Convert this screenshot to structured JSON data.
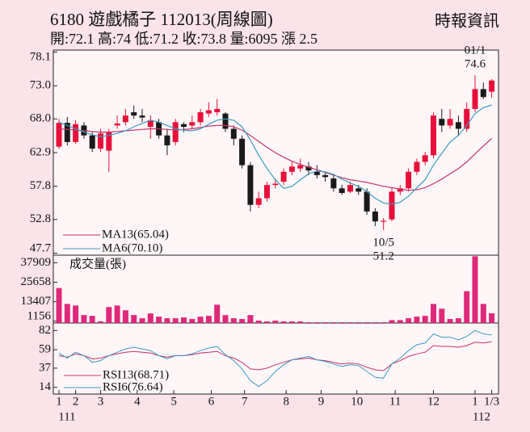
{
  "chart_data": [
    {
      "type": "candlestick",
      "title": "6180  遊戲橘子 112013(周線圖)",
      "subtitle": "開:72.1 高:74 低:71.2 收:73.8 量:6095 漲 2.5",
      "source": "時報資訊",
      "open": [
        63.8,
        67.4,
        64.5,
        67.0,
        65.5,
        63.5,
        63.2,
        67.0,
        67.5,
        69.0,
        68.5,
        66.8,
        67.5,
        65.5,
        64.5,
        67.2,
        67.0,
        67.5,
        68.8,
        69.0,
        68.8,
        66.5,
        65.0,
        61.0,
        55.0,
        56.0,
        58.0,
        58.5,
        60.0,
        60.5,
        60.8,
        60.0,
        59.5,
        59.0,
        57.5,
        57.0,
        57.5,
        57.0,
        54.0,
        52.5,
        52.8,
        57.0,
        57.5,
        60.0,
        61.5,
        62.5,
        68.0,
        67.0,
        67.5,
        66.5,
        69.5,
        72.5,
        72.1
      ],
      "high": [
        68.0,
        68.3,
        67.8,
        67.5,
        66.0,
        66.5,
        66.5,
        68.5,
        69.5,
        70.0,
        69.5,
        68.5,
        68.0,
        66.5,
        68.0,
        67.5,
        68.5,
        69.5,
        70.5,
        71.0,
        69.0,
        67.0,
        65.5,
        61.5,
        57.0,
        58.5,
        59.0,
        60.5,
        61.5,
        62.0,
        61.5,
        61.0,
        60.0,
        59.5,
        58.0,
        58.5,
        58.0,
        57.5,
        54.5,
        53.0,
        57.5,
        58.0,
        60.5,
        62.0,
        63.0,
        69.0,
        69.5,
        69.5,
        68.5,
        70.5,
        74.6,
        73.5,
        74
      ],
      "low": [
        63.5,
        64.0,
        64.2,
        65.0,
        63.0,
        63.0,
        60.0,
        66.5,
        67.0,
        68.0,
        67.5,
        65.0,
        65.0,
        62.5,
        64.0,
        66.0,
        66.5,
        67.0,
        68.3,
        68.5,
        66.0,
        64.0,
        60.5,
        54.0,
        54.5,
        55.5,
        57.5,
        58.0,
        59.5,
        60.0,
        59.5,
        59.0,
        58.5,
        57.0,
        56.5,
        56.8,
        56.5,
        53.5,
        51.8,
        51.2,
        52.5,
        56.5,
        57.0,
        59.5,
        61.0,
        62.0,
        66.0,
        66.5,
        65.5,
        66.0,
        69.0,
        71.0,
        71.2
      ],
      "close": [
        67.4,
        64.5,
        67.2,
        65.5,
        63.5,
        65.8,
        66.0,
        67.3,
        68.5,
        68.5,
        68.2,
        67.8,
        65.5,
        64.0,
        67.5,
        66.8,
        67.5,
        69.0,
        69.3,
        69.5,
        66.5,
        65.0,
        61.0,
        55.0,
        56.0,
        58.0,
        58.2,
        60.0,
        60.8,
        61.0,
        60.2,
        59.5,
        59.2,
        57.5,
        56.8,
        58.0,
        57.0,
        54.0,
        52.5,
        52.6,
        57.0,
        57.5,
        60.0,
        61.5,
        62.5,
        68.5,
        67.0,
        68.0,
        66.5,
        69.5,
        72.5,
        71.3,
        73.8
      ],
      "up_color": "#e8103a",
      "down_color": "#1a1a1a",
      "series": [
        {
          "name": "MA13(65.04)",
          "color": "#c8326e",
          "values": [
            66.5,
            66.4,
            66.3,
            66.2,
            66.1,
            66.0,
            66.0,
            66.1,
            66.2,
            66.3,
            66.4,
            66.5,
            66.5,
            66.4,
            66.3,
            66.4,
            66.5,
            66.7,
            66.9,
            67.0,
            67.0,
            66.8,
            66.3,
            65.5,
            64.6,
            63.7,
            62.9,
            62.2,
            61.6,
            61.1,
            60.7,
            60.3,
            59.9,
            59.5,
            59.1,
            58.8,
            58.6,
            58.4,
            58.1,
            57.8,
            57.6,
            57.4,
            57.2,
            57.3,
            57.6,
            58.2,
            58.9,
            59.7,
            60.5,
            61.5,
            62.7,
            63.9,
            65.04
          ]
        },
        {
          "name": "MA6(70.10)",
          "color": "#3a9bbf",
          "values": [
            67.5,
            67.0,
            66.5,
            66.0,
            65.6,
            65.3,
            65.5,
            65.8,
            66.2,
            66.8,
            67.3,
            67.8,
            67.5,
            67.0,
            66.5,
            66.3,
            66.2,
            66.5,
            67.2,
            67.8,
            68.0,
            67.8,
            66.8,
            64.8,
            62.5,
            60.5,
            58.8,
            57.5,
            57.8,
            58.8,
            59.7,
            60.1,
            60.0,
            59.6,
            58.9,
            58.3,
            57.8,
            57.0,
            56.0,
            55.3,
            55.1,
            55.4,
            56.3,
            57.6,
            58.8,
            61.0,
            62.8,
            64.5,
            65.5,
            67.0,
            68.8,
            69.7,
            70.1
          ]
        }
      ],
      "ylim": [
        47.4,
        78.4
      ],
      "yticks": [
        78.1,
        {
          "value": 73,
          "label": "73.0"
        },
        {
          "value": 68,
          "label": "68.0"
        },
        62.9,
        57.8,
        52.8,
        47.7
      ],
      "annotations": [
        {
          "index": 50,
          "label": "01/1",
          "value": 74.6
        },
        {
          "index": 39,
          "label": "10/5",
          "value": 51.2
        }
      ],
      "xticks": [
        {
          "value": 0,
          "label": "1"
        },
        {
          "value": 2,
          "label": "2"
        },
        {
          "value": 5,
          "label": "3"
        },
        {
          "value": 9.4,
          "label": "4"
        },
        {
          "value": 13.8,
          "label": "5"
        },
        {
          "value": 18.3,
          "label": "6"
        },
        {
          "value": 22.3,
          "label": "7"
        },
        {
          "value": 27.3,
          "label": "8"
        },
        {
          "value": 31.5,
          "label": "9"
        },
        {
          "value": 35.8,
          "label": "10"
        },
        {
          "value": 40.4,
          "label": "11"
        },
        {
          "value": 45,
          "label": "12"
        },
        {
          "value": 50,
          "label": "1"
        },
        {
          "value": 52,
          "label": "1/3"
        }
      ],
      "year_labels": [
        {
          "value": 0,
          "label": "111"
        },
        {
          "value": 50,
          "label": "112"
        }
      ]
    },
    {
      "type": "bar",
      "title": "成交量(張)",
      "color": "#e0287a",
      "values": [
        22000,
        12000,
        11000,
        5000,
        4500,
        1000,
        10000,
        11000,
        8000,
        5000,
        3000,
        6000,
        4000,
        3000,
        3000,
        3500,
        2500,
        4000,
        4500,
        11500,
        5000,
        3000,
        2500,
        5000,
        1500,
        1000,
        1500,
        1000,
        1000,
        1000,
        500,
        500,
        500,
        500,
        500,
        500,
        500,
        500,
        500,
        500,
        1800,
        1800,
        3000,
        4000,
        4500,
        12000,
        9000,
        2500,
        3000,
        20000,
        42000,
        12000,
        6095
      ],
      "ylim": [
        0,
        42700
      ],
      "yticks": [
        37909,
        25658,
        13407,
        1156
      ]
    },
    {
      "type": "line",
      "series": [
        {
          "name": "RSI13(68.71)",
          "color": "#c8326e",
          "values": [
            52,
            50,
            54,
            52,
            48,
            49,
            52,
            54,
            56,
            57,
            56,
            55,
            52,
            50,
            52,
            52,
            53,
            55,
            56,
            57,
            52,
            49,
            44,
            36,
            35,
            37,
            41,
            44,
            47,
            48,
            49,
            47,
            46,
            44,
            42,
            43,
            42,
            38,
            35,
            34,
            42,
            46,
            51,
            54,
            56,
            64,
            63,
            63,
            62,
            64,
            68,
            67,
            68.71
          ]
        },
        {
          "name": "RSI6(76.64)",
          "color": "#3a9bbf",
          "values": [
            55,
            49,
            56,
            52,
            44,
            46,
            52,
            56,
            60,
            62,
            60,
            58,
            52,
            48,
            52,
            52,
            54,
            58,
            61,
            63,
            53,
            46,
            36,
            22,
            15,
            22,
            33,
            41,
            47,
            49,
            51,
            47,
            45,
            42,
            39,
            41,
            40,
            33,
            26,
            25,
            42,
            49,
            58,
            65,
            67,
            78,
            74,
            74,
            71,
            75,
            82,
            78,
            76.64
          ]
        }
      ],
      "ylim": [
        6,
        91
      ],
      "yticks": [
        82,
        59,
        37,
        14
      ]
    }
  ]
}
